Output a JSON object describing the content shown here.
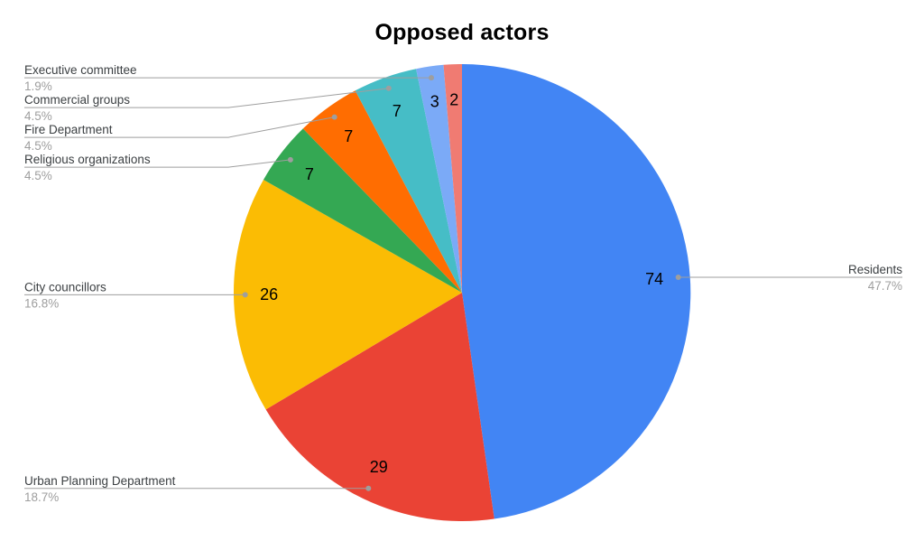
{
  "chart_data": {
    "type": "pie",
    "title": "Opposed actors",
    "slices": [
      {
        "label": "Residents",
        "value": 74,
        "pct": "47.7%",
        "color": "#4285F4",
        "callout": "right"
      },
      {
        "label": "Urban Planning Department",
        "value": 29,
        "pct": "18.7%",
        "color": "#EA4335",
        "callout": "left"
      },
      {
        "label": "City councillors",
        "value": 26,
        "pct": "16.8%",
        "color": "#FBBC04",
        "callout": "left"
      },
      {
        "label": "Religious organizations",
        "value": 7,
        "pct": "4.5%",
        "color": "#34A853",
        "callout": "left"
      },
      {
        "label": "Fire Department",
        "value": 7,
        "pct": "4.5%",
        "color": "#FF6D01",
        "callout": "left"
      },
      {
        "label": "Commercial groups",
        "value": 7,
        "pct": "4.5%",
        "color": "#46BDC6",
        "callout": "left"
      },
      {
        "label": "Executive committee",
        "value": 3,
        "pct": "1.9%",
        "color": "#7BAAF7",
        "callout": "left"
      },
      {
        "label": "",
        "value": 2,
        "color": "#F07B72",
        "callout": "none"
      }
    ],
    "layout": {
      "legend": "callout-labels",
      "start_angle_deg": 0,
      "direction": "clockwise",
      "background": "#FFFFFF",
      "label_color": "#3C4043",
      "pct_color": "#9E9E9E",
      "line_color": "#9E9E9E",
      "value_label_color": "#000000"
    }
  }
}
